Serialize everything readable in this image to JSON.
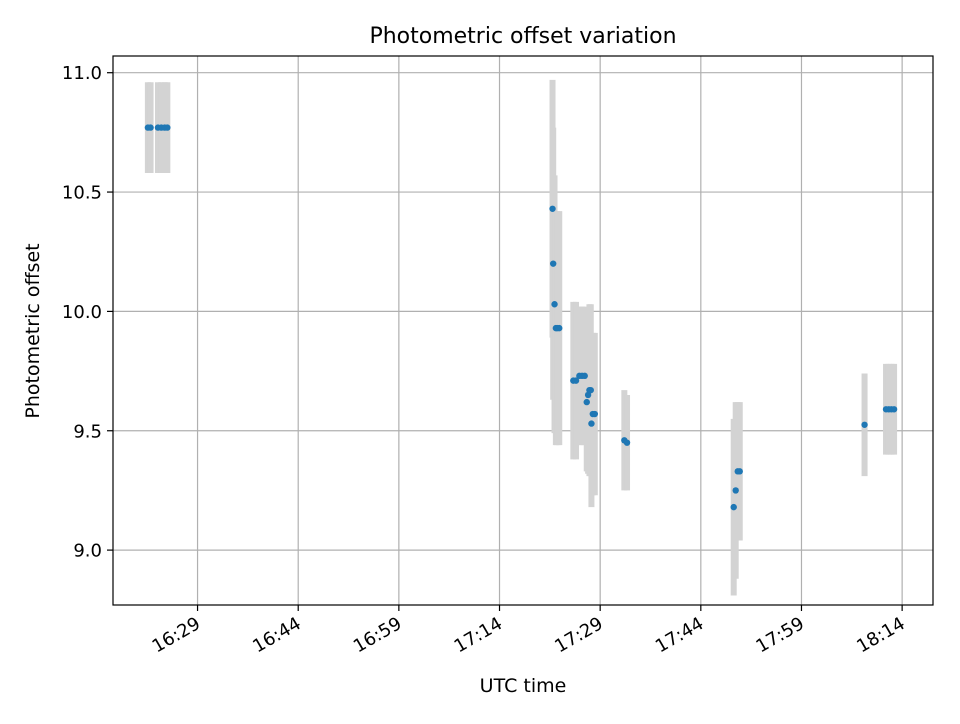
{
  "chart_data": {
    "type": "scatter",
    "title": "Photometric offset variation",
    "xlabel": "UTC time",
    "ylabel": "Photometric offset",
    "x_axis": "time",
    "x_ticks": [
      "16:29",
      "16:44",
      "16:59",
      "17:14",
      "17:29",
      "17:44",
      "17:59",
      "18:14"
    ],
    "x_tick_minutes": [
      989,
      1004,
      1019,
      1034,
      1049,
      1064,
      1079,
      1094
    ],
    "xlim_minutes": [
      976.4,
      1098.6
    ],
    "y_ticks": [
      9.0,
      9.5,
      10.0,
      10.5,
      11.0
    ],
    "ylim": [
      8.77,
      11.07
    ],
    "grid": true,
    "errorbar_color": "#d3d3d3",
    "marker_color": "#1f77b4",
    "points": [
      {
        "t": 981.6,
        "y": 10.77,
        "err": 0.19
      },
      {
        "t": 982.0,
        "y": 10.77,
        "err": 0.19
      },
      {
        "t": 983.1,
        "y": 10.77,
        "err": 0.19
      },
      {
        "t": 983.6,
        "y": 10.77,
        "err": 0.19
      },
      {
        "t": 984.1,
        "y": 10.77,
        "err": 0.19
      },
      {
        "t": 984.5,
        "y": 10.77,
        "err": 0.19
      },
      {
        "t": 1041.9,
        "y": 10.43,
        "err": 0.54
      },
      {
        "t": 1042.0,
        "y": 10.2,
        "err": 0.57
      },
      {
        "t": 1042.2,
        "y": 10.03,
        "err": 0.54
      },
      {
        "t": 1042.4,
        "y": 9.93,
        "err": 0.49
      },
      {
        "t": 1042.6,
        "y": 9.93,
        "err": 0.49
      },
      {
        "t": 1042.9,
        "y": 9.93,
        "err": 0.49
      },
      {
        "t": 1045.0,
        "y": 9.71,
        "err": 0.33
      },
      {
        "t": 1045.4,
        "y": 9.71,
        "err": 0.33
      },
      {
        "t": 1045.9,
        "y": 9.73,
        "err": 0.29
      },
      {
        "t": 1046.3,
        "y": 9.73,
        "err": 0.29
      },
      {
        "t": 1046.7,
        "y": 9.73,
        "err": 0.29
      },
      {
        "t": 1047.0,
        "y": 9.62,
        "err": 0.29
      },
      {
        "t": 1047.2,
        "y": 9.65,
        "err": 0.33
      },
      {
        "t": 1047.4,
        "y": 9.67,
        "err": 0.36
      },
      {
        "t": 1047.6,
        "y": 9.67,
        "err": 0.36
      },
      {
        "t": 1047.7,
        "y": 9.53,
        "err": 0.35
      },
      {
        "t": 1047.9,
        "y": 9.57,
        "err": 0.34
      },
      {
        "t": 1048.2,
        "y": 9.57,
        "err": 0.34
      },
      {
        "t": 1052.6,
        "y": 9.46,
        "err": 0.21
      },
      {
        "t": 1053.0,
        "y": 9.45,
        "err": 0.2
      },
      {
        "t": 1068.9,
        "y": 9.18,
        "err": 0.37
      },
      {
        "t": 1069.2,
        "y": 9.25,
        "err": 0.37
      },
      {
        "t": 1069.5,
        "y": 9.33,
        "err": 0.29
      },
      {
        "t": 1069.8,
        "y": 9.33,
        "err": 0.29
      },
      {
        "t": 1088.4,
        "y": 9.525,
        "err": 0.215
      },
      {
        "t": 1091.6,
        "y": 9.59,
        "err": 0.19
      },
      {
        "t": 1092.0,
        "y": 9.59,
        "err": 0.19
      },
      {
        "t": 1092.4,
        "y": 9.59,
        "err": 0.19
      },
      {
        "t": 1092.8,
        "y": 9.59,
        "err": 0.19
      }
    ]
  }
}
